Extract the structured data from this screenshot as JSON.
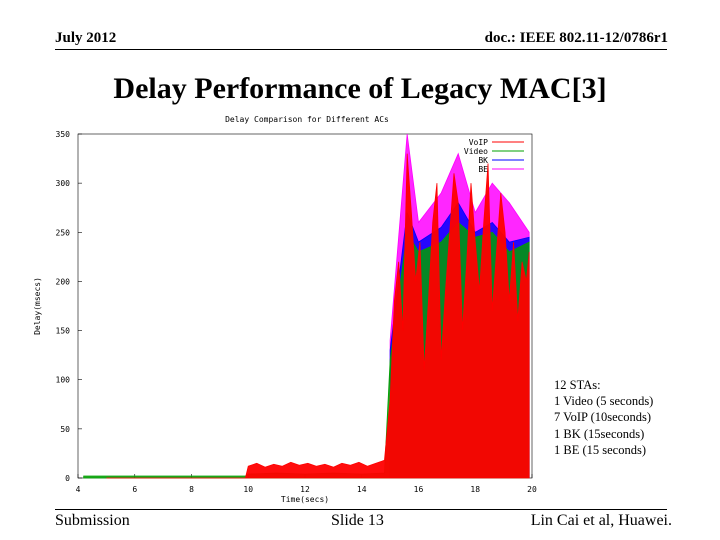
{
  "header": {
    "date": "July 2012",
    "doc": "doc.: IEEE 802.11-12/0786r1"
  },
  "slide_title": "Delay Performance of Legacy MAC[3]",
  "chart_data": {
    "type": "area",
    "title": "Delay Comparison for Different ACs",
    "xlabel": "Time(secs)",
    "ylabel": "Delay(msecs)",
    "xlim": [
      4,
      20
    ],
    "ylim": [
      0,
      350
    ],
    "x_ticks": [
      "4",
      "6",
      "8",
      "10",
      "12",
      "14",
      "16",
      "18",
      "20"
    ],
    "y_ticks": [
      "0",
      "50",
      "100",
      "150",
      "200",
      "250",
      "300",
      "350"
    ],
    "legend_position": "top-right",
    "series": [
      {
        "name": "VoIP",
        "color": "#ff0000",
        "x": [
          5,
          9.9,
          10,
          10.3,
          10.6,
          10.9,
          11.2,
          11.5,
          11.8,
          12.1,
          12.4,
          12.7,
          13,
          13.3,
          13.6,
          13.9,
          14.2,
          14.5,
          14.8,
          15.0,
          15.15,
          15.3,
          15.45,
          15.6,
          15.75,
          15.9,
          16.05,
          16.2,
          16.35,
          16.5,
          16.65,
          16.8,
          16.95,
          17.1,
          17.25,
          17.4,
          17.55,
          17.7,
          17.85,
          18.0,
          18.15,
          18.3,
          18.45,
          18.6,
          18.75,
          18.9,
          19.05,
          19.2,
          19.35,
          19.5,
          19.65,
          19.8,
          19.9
        ],
        "values": [
          0,
          0,
          12,
          15,
          11,
          14,
          12,
          16,
          13,
          15,
          12,
          14,
          11,
          15,
          13,
          16,
          12,
          15,
          18,
          80,
          180,
          220,
          150,
          330,
          270,
          200,
          240,
          110,
          180,
          260,
          300,
          120,
          190,
          250,
          310,
          280,
          150,
          220,
          300,
          240,
          190,
          260,
          320,
          170,
          230,
          290,
          250,
          180,
          240,
          160,
          220,
          200,
          230
        ]
      },
      {
        "name": "Video",
        "color": "#00a000",
        "x": [
          4.2,
          9.9,
          10,
          11,
          12,
          13,
          14,
          14.8,
          15,
          15.6,
          16,
          16.8,
          17.4,
          18,
          18.6,
          19.2,
          19.9
        ],
        "values": [
          2,
          2,
          4,
          5,
          4,
          5,
          4,
          5,
          120,
          250,
          230,
          240,
          260,
          245,
          250,
          230,
          240
        ]
      },
      {
        "name": "BK",
        "color": "#0000ff",
        "x": [
          15,
          15.6,
          16,
          16.8,
          17.4,
          18,
          18.6,
          19.2,
          19.9
        ],
        "values": [
          130,
          270,
          240,
          255,
          280,
          250,
          260,
          240,
          245
        ]
      },
      {
        "name": "BE",
        "color": "#ff00ff",
        "x": [
          15,
          15.6,
          16,
          16.8,
          17.4,
          18,
          18.6,
          19.2,
          19.9
        ],
        "values": [
          140,
          350,
          260,
          290,
          330,
          270,
          300,
          280,
          250
        ]
      }
    ]
  },
  "annotation": {
    "lines": [
      "12 STAs:",
      "1 Video (5 seconds)",
      "7 VoIP (10seconds)",
      "1 BK (15seconds)",
      "1 BE (15 seconds)"
    ]
  },
  "footer": {
    "left": "Submission",
    "center": "Slide 13",
    "right": "Lin Cai et al, Huawei."
  }
}
